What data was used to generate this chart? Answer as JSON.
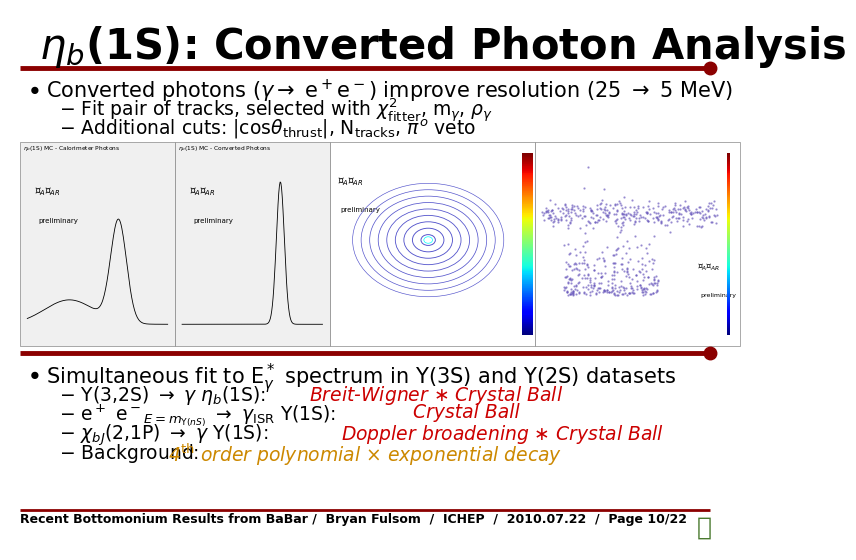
{
  "title_part1": "η",
  "title_part2": "b",
  "title_part3": "(1S): Converted Photon Analysis",
  "separator_color": "#8B0000",
  "background_color": "#ffffff",
  "title_fontsize": 30,
  "bullet_fontsize": 15,
  "sub_fontsize": 13.5,
  "fit_fontsize": 13.5,
  "footer_fontsize": 9,
  "footer": "Recent Bottomonium Results from BaBar /  Bryan Fulsom  /  ICHEP  /  2010.07.22  /  Page 10/22",
  "fit_color": "#cc0000",
  "fit4_color": "#cc8800"
}
